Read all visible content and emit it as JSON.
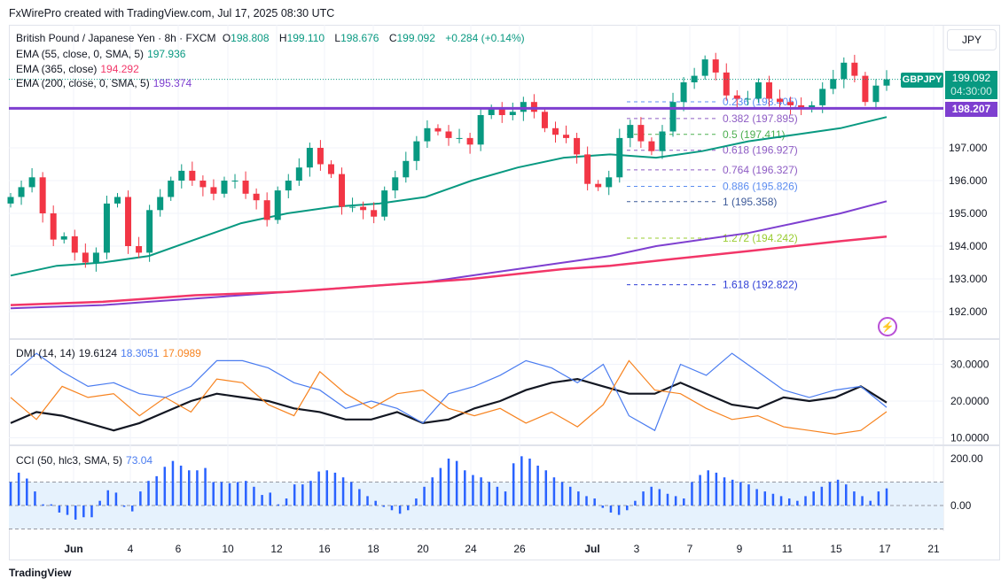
{
  "title": "FxWirePro created with TradingView.com, Jul 17, 2025 08:30 UTC",
  "legend": {
    "symbol": "British Pound / Japanese Yen · 8h · FXCM",
    "o_label": "O",
    "o": "198.808",
    "h_label": "H",
    "h": "199.110",
    "l_label": "L",
    "l": "198.676",
    "c_label": "C",
    "c": "199.092",
    "change": "+0.284 (+0.14%)",
    "ema55": {
      "label": "EMA (55, close, 0, SMA, 5)",
      "value": "197.936",
      "color": "#089981"
    },
    "ema365": {
      "label": "EMA (365, close)",
      "value": "194.292",
      "color": "#f23668"
    },
    "ema200": {
      "label": "EMA (200, close, 0, SMA, 5)",
      "value": "195.374",
      "color": "#7e3fd0"
    },
    "dmi": {
      "label": "DMI (14, 14)",
      "adx": "19.6124",
      "plus": "18.3051",
      "minus": "17.0989"
    },
    "cci": {
      "label": "CCI (50, hlc3, SMA, 5)",
      "value": "73.04"
    }
  },
  "currency": "JPY",
  "symbol_tag": "GBPJPY",
  "last_price": "199.092",
  "countdown": "04:30:00",
  "level_tag": "198.207",
  "logo": "TradingView",
  "chart_data": [
    {
      "type": "candlestick",
      "title": "GBPJPY 8h",
      "ylim": [
        191.6,
        200.2
      ],
      "price_ticks": [
        "197.000",
        "196.000",
        "195.000",
        "194.000",
        "193.000",
        "192.000"
      ],
      "price_tick_values": [
        197,
        196,
        195,
        194,
        193,
        192
      ],
      "x_ticks": [
        "Jun",
        "4",
        "6",
        "10",
        "12",
        "16",
        "18",
        "20",
        "24",
        "26",
        "Jul",
        "3",
        "7",
        "9",
        "11",
        "15",
        "17",
        "21"
      ],
      "closes": [
        195.5,
        195.8,
        196.1,
        195.0,
        194.2,
        194.3,
        193.8,
        193.5,
        193.8,
        195.3,
        195.5,
        194.0,
        193.8,
        195.1,
        195.5,
        196.0,
        196.3,
        196.0,
        195.8,
        195.6,
        196.0,
        196.0,
        195.6,
        195.4,
        194.8,
        195.7,
        196.0,
        196.4,
        197.0,
        196.5,
        196.2,
        195.2,
        195.2,
        195.1,
        194.9,
        195.7,
        196.1,
        196.6,
        197.2,
        197.6,
        197.5,
        197.3,
        197.3,
        197.1,
        198.0,
        198.2,
        198.0,
        198.1,
        198.4,
        198.1,
        197.6,
        197.4,
        197.3,
        196.8,
        195.9,
        195.8,
        196.1,
        197.3,
        197.7,
        197.2,
        196.9,
        197.5,
        198.4,
        199.0,
        199.2,
        199.7,
        199.3,
        198.6,
        198.5,
        198.5,
        199.0,
        198.5,
        198.4,
        198.3,
        198.2,
        198.3,
        198.8,
        199.1,
        199.6,
        199.2,
        198.4,
        198.9,
        199.092
      ],
      "series": [
        {
          "name": "EMA 55",
          "color": "#089981",
          "values": [
            193.1,
            193.4,
            193.5,
            193.7,
            194.2,
            194.7,
            195.0,
            195.2,
            195.3,
            195.5,
            196.0,
            196.4,
            196.7,
            196.8,
            196.7,
            196.9,
            197.2,
            197.4,
            197.6,
            197.94
          ]
        },
        {
          "name": "EMA 200",
          "color": "#7e3fd0",
          "values": [
            192.1,
            192.15,
            192.2,
            192.3,
            192.4,
            192.5,
            192.6,
            192.7,
            192.8,
            192.9,
            193.1,
            193.3,
            193.5,
            193.7,
            194.0,
            194.2,
            194.4,
            194.7,
            195.0,
            195.37
          ]
        },
        {
          "name": "EMA 365",
          "color": "#f23668",
          "values": [
            192.2,
            192.25,
            192.3,
            192.4,
            192.5,
            192.55,
            192.6,
            192.7,
            192.8,
            192.9,
            193.0,
            193.15,
            193.3,
            193.4,
            193.55,
            193.7,
            193.85,
            194.0,
            194.15,
            194.29
          ]
        }
      ],
      "horizontal_level": 198.207,
      "fib_levels": [
        {
          "label": "0.236 (198.405)",
          "value": 198.405,
          "color": "#5b8cf0"
        },
        {
          "label": "0.382 (197.895)",
          "value": 197.895,
          "color": "#8e5cc4"
        },
        {
          "label": "0.5 (197.411)",
          "value": 197.411,
          "color": "#4caf50"
        },
        {
          "label": "0.618 (196.927)",
          "value": 196.927,
          "color": "#8e5cc4"
        },
        {
          "label": "0.764 (196.327)",
          "value": 196.327,
          "color": "#8e5cc4"
        },
        {
          "label": "0.886 (195.826)",
          "value": 195.826,
          "color": "#5b8cf0"
        },
        {
          "label": "1 (195.358)",
          "value": 195.358,
          "color": "#3d5a99"
        },
        {
          "label": "1.272 (194.242)",
          "value": 194.242,
          "color": "#9acd32"
        },
        {
          "label": "1.618 (192.822)",
          "value": 192.822,
          "color": "#2f3fd6"
        }
      ]
    },
    {
      "type": "line",
      "title": "DMI (14, 14)",
      "ylim": [
        8,
        34
      ],
      "ticks": [
        "30.0000",
        "20.0000",
        "10.0000"
      ],
      "tick_values": [
        30,
        20,
        10
      ],
      "series": [
        {
          "name": "ADX",
          "color": "#131722",
          "values": [
            14,
            17,
            16,
            14,
            12,
            14,
            17,
            20,
            22,
            21,
            20,
            18,
            17,
            15,
            15,
            17,
            14,
            15,
            18,
            20,
            23,
            25,
            26,
            24,
            22,
            22,
            25,
            22,
            19,
            18,
            21,
            20,
            21,
            24,
            19.6
          ]
        },
        {
          "name": "+DI",
          "color": "#4a7cf0",
          "values": [
            27,
            33,
            28,
            24,
            25,
            22,
            21,
            24,
            31,
            31,
            29,
            25,
            23,
            18,
            20,
            18,
            14,
            22,
            24,
            27,
            31,
            29,
            25,
            30,
            16,
            12,
            30,
            27,
            33,
            28,
            23,
            21,
            23,
            24,
            18.3
          ]
        },
        {
          "name": "-DI",
          "color": "#f7831f",
          "values": [
            21,
            15,
            24,
            21,
            22,
            16,
            21,
            17,
            26,
            25,
            19,
            16,
            28,
            22,
            18,
            22,
            23,
            18,
            16,
            18,
            14,
            17,
            13,
            19,
            31,
            23,
            22,
            18,
            15,
            16,
            13,
            12,
            11,
            12,
            17.1
          ]
        }
      ]
    },
    {
      "type": "bar",
      "title": "CCI (50, hlc3, SMA, 5)",
      "ylim": [
        -110,
        210
      ],
      "ticks": [
        "200.00",
        "0.00"
      ],
      "tick_values": [
        200,
        0
      ],
      "band": [
        -100,
        100
      ],
      "values": [
        100,
        140,
        115,
        60,
        5,
        5,
        -30,
        -40,
        -60,
        -50,
        -50,
        20,
        65,
        55,
        -5,
        -25,
        60,
        105,
        125,
        165,
        190,
        170,
        150,
        150,
        160,
        100,
        100,
        95,
        100,
        105,
        80,
        45,
        55,
        5,
        30,
        90,
        90,
        105,
        145,
        150,
        140,
        120,
        100,
        70,
        40,
        20,
        -5,
        -20,
        -35,
        -20,
        30,
        80,
        120,
        160,
        200,
        190,
        150,
        130,
        120,
        100,
        80,
        60,
        180,
        210,
        200,
        170,
        150,
        120,
        100,
        80,
        60,
        40,
        30,
        -10,
        -30,
        -40,
        -20,
        20,
        60,
        80,
        70,
        50,
        40,
        30,
        100,
        130,
        150,
        140,
        120,
        110,
        100,
        90,
        70,
        60,
        50,
        40,
        30,
        20,
        40,
        60,
        80,
        100,
        110,
        90,
        60,
        40,
        20,
        60,
        73
      ]
    }
  ]
}
